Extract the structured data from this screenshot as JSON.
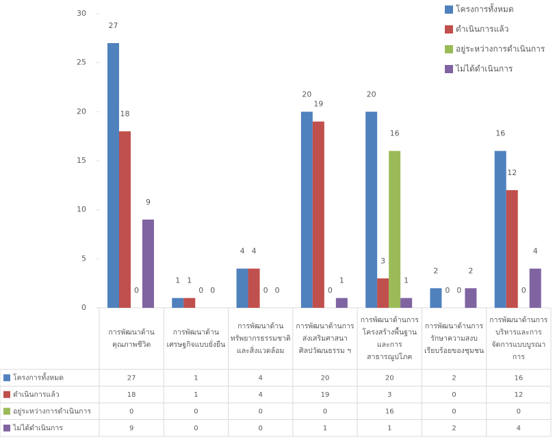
{
  "chart_data": {
    "type": "bar",
    "categories": [
      [
        "การพัฒนาด้าน",
        "คุณภาพชีวิต"
      ],
      [
        "การพัฒนาด้าน",
        "เศรษฐกิจแบบยั่งยืน"
      ],
      [
        "การพัฒนาด้าน",
        "ทรัพยากรธรรมชาติ",
        "และสิ่งแวดล้อม"
      ],
      [
        "การพัฒนาด้านการ",
        "ส่งเสริมศาสนา",
        "ศิลปวัฒนธรรม ฯ"
      ],
      [
        "การพัฒนาด้านการ",
        "โครงสร้างพื้นฐาน",
        "และการ",
        "สาธารณูปโภค"
      ],
      [
        "การพัฒนาด้านการ",
        "รักษาความสงบ",
        "เรียบร้อยของชุมชน"
      ],
      [
        "การพัฒนาด้านการ",
        "บริหารและการ",
        "จัดการแบบบูรณา",
        "การ"
      ]
    ],
    "series": [
      {
        "name": "โครงการทั้งหมด",
        "color": "#4f81bd",
        "values": [
          27,
          1,
          4,
          20,
          20,
          2,
          16
        ]
      },
      {
        "name": "ดำเนินการแล้ว",
        "color": "#c0504d",
        "values": [
          18,
          1,
          4,
          19,
          3,
          0,
          12
        ]
      },
      {
        "name": "อยู่ระหว่างการดำเนินการ",
        "color": "#9bbb59",
        "values": [
          0,
          0,
          0,
          0,
          16,
          0,
          0
        ]
      },
      {
        "name": "ไม่ได้ดำเนินการ",
        "color": "#8064a2",
        "values": [
          9,
          0,
          0,
          1,
          1,
          2,
          4
        ]
      }
    ],
    "ylim": [
      0,
      30
    ],
    "yticks": [
      0,
      5,
      10,
      15,
      20,
      25,
      30
    ],
    "grid": false,
    "legend": "top-right",
    "data_table": true
  }
}
